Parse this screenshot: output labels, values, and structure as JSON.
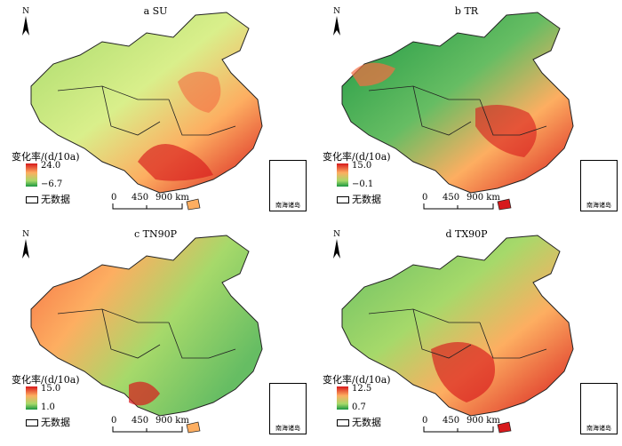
{
  "panels": [
    {
      "id": "a",
      "title": "a SU",
      "legend_title": "变化率/(d/10a)",
      "legend_max": "24.0",
      "legend_min": "−6.7",
      "nodata": "无数据",
      "scale": {
        "zero": "0",
        "mid": "450",
        "end": "900 km"
      },
      "inset_label": "南海诸岛",
      "north": "N",
      "dominant": "mixed-south-red"
    },
    {
      "id": "b",
      "title": "b TR",
      "legend_title": "变化率/(d/10a)",
      "legend_max": "15.0",
      "legend_min": "−0.1",
      "nodata": "无数据",
      "scale": {
        "zero": "0",
        "mid": "450",
        "end": "900 km"
      },
      "inset_label": "南海诸岛",
      "north": "N",
      "dominant": "west-green"
    },
    {
      "id": "c",
      "title": "c TN90P",
      "legend_title": "变化率/(d/10a)",
      "legend_max": "15.0",
      "legend_min": "1.0",
      "nodata": "无数据",
      "scale": {
        "zero": "0",
        "mid": "450",
        "end": "900 km"
      },
      "inset_label": "南海诸岛",
      "north": "N",
      "dominant": "west-orange"
    },
    {
      "id": "d",
      "title": "d TX90P",
      "legend_title": "变化率/(d/10a)",
      "legend_max": "12.5",
      "legend_min": "0.7",
      "nodata": "无数据",
      "scale": {
        "zero": "0",
        "mid": "450",
        "end": "900 km"
      },
      "inset_label": "南海诸岛",
      "north": "N",
      "dominant": "south-red"
    }
  ],
  "colors": {
    "high": "#d7191c",
    "mid_high": "#fdae61",
    "mid": "#ffffbf",
    "mid_low": "#a6d96a",
    "low": "#1a9641"
  }
}
